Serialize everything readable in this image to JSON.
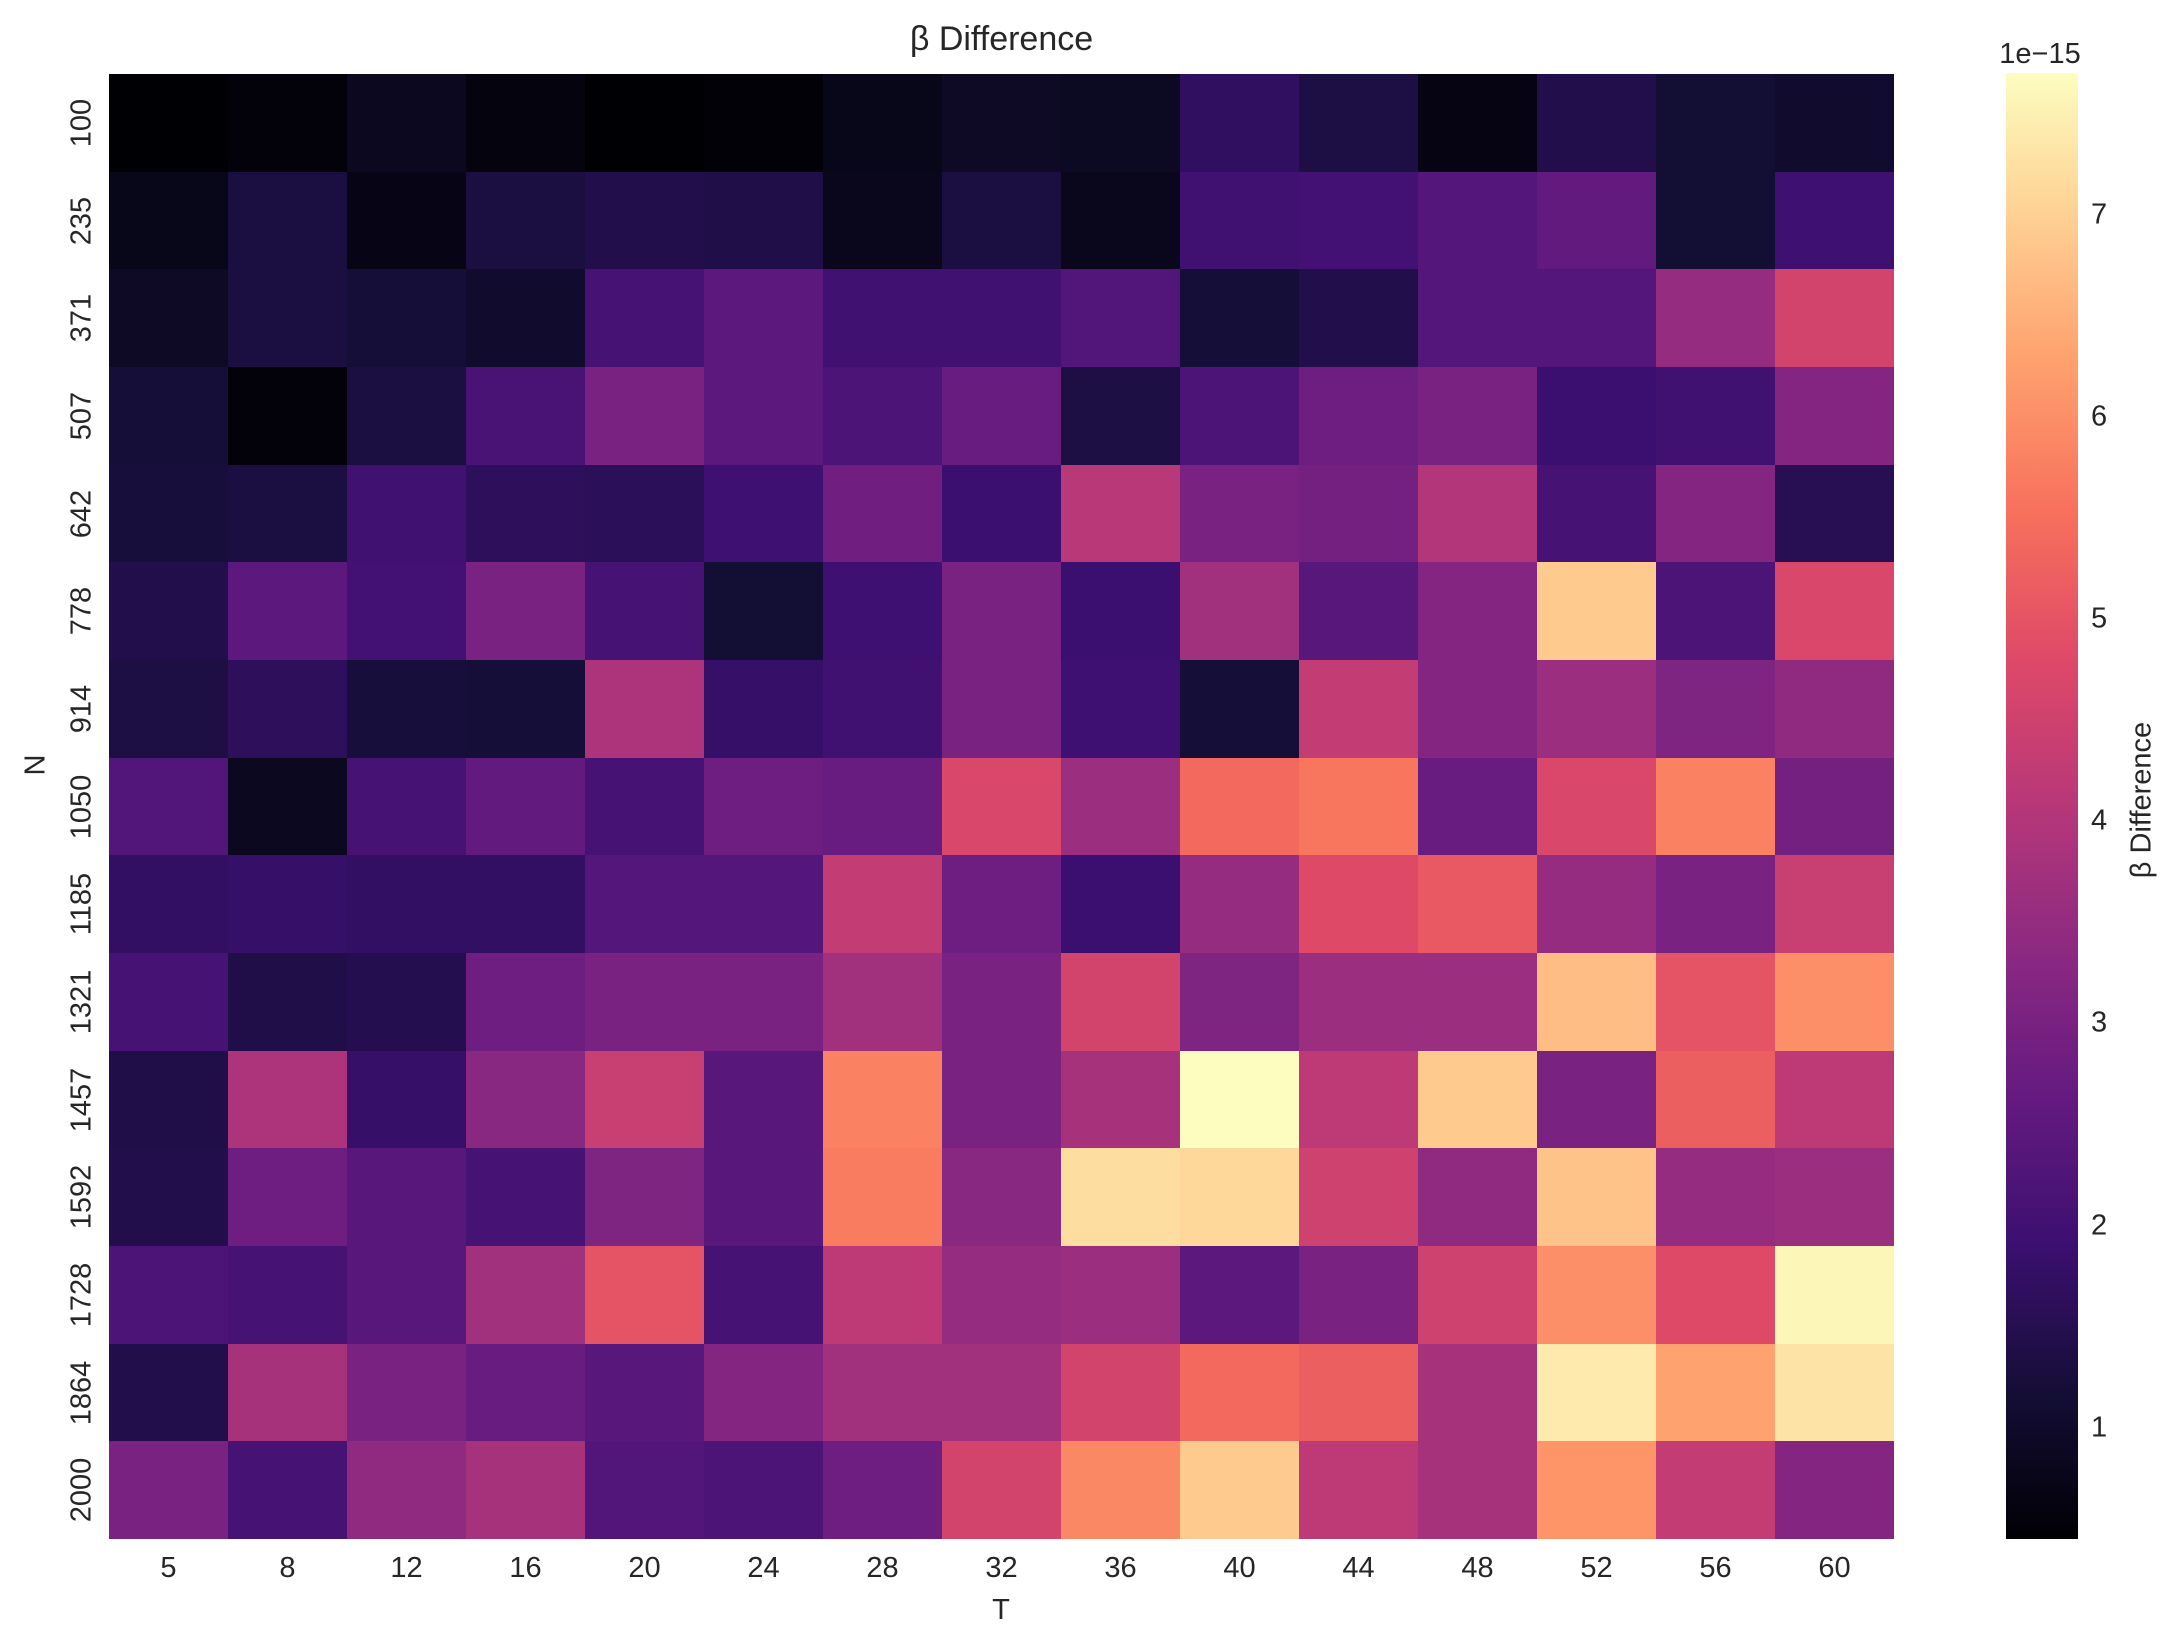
{
  "chart_data": {
    "type": "heatmap",
    "title": "β Difference",
    "xlabel": "T",
    "ylabel": "N",
    "x": [
      5,
      8,
      12,
      16,
      20,
      24,
      28,
      32,
      36,
      40,
      44,
      48,
      52,
      56,
      60
    ],
    "y": [
      100,
      235,
      371,
      507,
      642,
      778,
      914,
      1050,
      1185,
      1321,
      1457,
      1592,
      1728,
      1864,
      2000
    ],
    "values_scale": "1e-15",
    "colormap": "magma",
    "colorbar": {
      "label": "β Difference",
      "offset_text": "1e−15",
      "ticks": [
        1,
        2,
        3,
        4,
        5,
        6,
        7
      ],
      "range": [
        0.45,
        7.7
      ]
    },
    "values": [
      [
        0.45,
        0.55,
        0.85,
        0.6,
        0.45,
        0.5,
        0.75,
        0.95,
        0.9,
        1.7,
        1.35,
        0.65,
        1.45,
        1.15,
        1.05
      ],
      [
        0.75,
        1.3,
        0.7,
        1.3,
        1.45,
        1.4,
        0.8,
        1.3,
        0.8,
        2.0,
        2.05,
        2.35,
        2.6,
        1.15,
        1.95
      ],
      [
        0.95,
        1.3,
        1.2,
        1.05,
        2.1,
        2.5,
        2.0,
        2.0,
        2.3,
        1.2,
        1.45,
        2.35,
        2.35,
        3.5,
        4.6
      ],
      [
        1.2,
        0.55,
        1.3,
        2.15,
        3.0,
        2.5,
        2.2,
        2.7,
        1.35,
        2.2,
        2.8,
        3.0,
        1.9,
        2.0,
        3.2
      ],
      [
        1.25,
        1.3,
        2.0,
        1.65,
        1.6,
        1.95,
        2.85,
        1.9,
        4.1,
        3.0,
        2.9,
        4.0,
        2.1,
        3.2,
        1.55
      ],
      [
        1.45,
        2.5,
        2.05,
        3.0,
        2.1,
        1.15,
        1.95,
        3.0,
        1.9,
        3.7,
        2.4,
        3.2,
        6.9,
        2.2,
        4.7
      ],
      [
        1.35,
        1.65,
        1.25,
        1.2,
        3.9,
        1.8,
        2.0,
        3.0,
        1.95,
        1.2,
        4.3,
        3.2,
        3.6,
        3.1,
        3.4
      ],
      [
        2.3,
        0.85,
        2.1,
        2.6,
        2.1,
        2.8,
        2.7,
        4.7,
        3.6,
        5.4,
        5.6,
        2.7,
        4.7,
        5.8,
        2.9
      ],
      [
        1.75,
        1.8,
        1.75,
        1.75,
        2.35,
        2.35,
        4.3,
        2.8,
        1.9,
        3.5,
        4.8,
        5.1,
        3.5,
        3.0,
        4.4
      ],
      [
        2.1,
        1.4,
        1.5,
        2.8,
        3.0,
        3.0,
        3.7,
        3.0,
        4.6,
        3.1,
        3.6,
        3.6,
        6.7,
        5.0,
        6.0
      ],
      [
        1.4,
        3.9,
        1.8,
        3.3,
        4.4,
        2.4,
        5.8,
        3.0,
        3.8,
        7.7,
        4.2,
        6.9,
        3.0,
        5.2,
        4.2
      ],
      [
        1.45,
        2.8,
        2.4,
        2.1,
        3.1,
        2.4,
        5.7,
        3.3,
        7.2,
        7.1,
        4.5,
        3.4,
        6.8,
        3.5,
        3.6
      ],
      [
        2.2,
        2.1,
        2.4,
        3.7,
        5.0,
        2.1,
        4.2,
        3.5,
        3.6,
        2.5,
        3.0,
        4.5,
        6.0,
        4.8,
        7.6
      ],
      [
        1.45,
        3.8,
        3.0,
        2.7,
        2.4,
        3.2,
        3.7,
        3.7,
        4.6,
        5.4,
        5.2,
        3.8,
        7.4,
        6.3,
        7.3
      ],
      [
        3.0,
        2.1,
        3.4,
        3.8,
        2.3,
        2.2,
        2.8,
        4.6,
        5.9,
        6.9,
        4.2,
        3.8,
        6.1,
        4.3,
        3.2
      ]
    ]
  }
}
